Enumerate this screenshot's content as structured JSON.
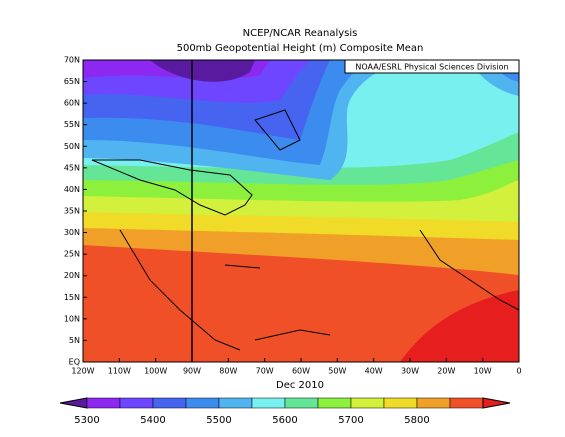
{
  "header": {
    "title": "NCEP/NCAR Reanalysis",
    "subtitle": "500mb Geopotential Height (m) Composite Mean",
    "credit": "NOAA/ESRL Physical Sciences Division"
  },
  "map": {
    "lat_labels": [
      "70N",
      "65N",
      "60N",
      "55N",
      "50N",
      "45N",
      "40N",
      "35N",
      "30N",
      "25N",
      "20N",
      "15N",
      "10N",
      "5N",
      "EQ"
    ],
    "lon_labels": [
      "120W",
      "110W",
      "100W",
      "90W",
      "80W",
      "70W",
      "60W",
      "50W",
      "40W",
      "30W",
      "20W",
      "10W",
      "0"
    ],
    "period": "Dec 2010"
  },
  "colorbar": {
    "labels": [
      5300,
      5400,
      5500,
      5600,
      5700,
      5800
    ],
    "colors": [
      "#5a1aa0",
      "#8c28f0",
      "#6e46ff",
      "#4664f0",
      "#3c8cf0",
      "#50b4f0",
      "#78f0f0",
      "#64e696",
      "#8cf03c",
      "#d2f03c",
      "#f0dc28",
      "#f0a028",
      "#f05028",
      "#e61e1e"
    ]
  }
}
